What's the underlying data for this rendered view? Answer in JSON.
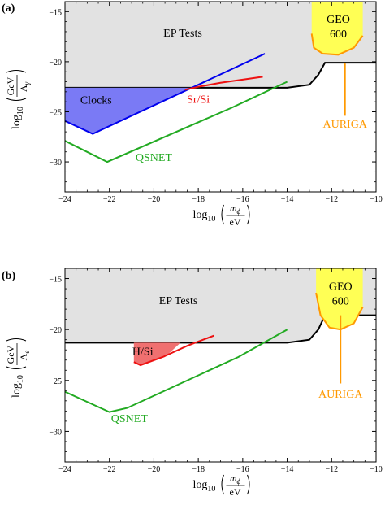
{
  "chart_data": [
    {
      "panel_label": "(a)",
      "type": "line",
      "ylabel": {
        "prefix": "log",
        "sub": "10",
        "numerator": "GeV",
        "denominator": "Λ",
        "denominator_sub": "γ"
      },
      "xlabel": {
        "prefix": "log",
        "sub": "10",
        "numerator": "m",
        "numerator_sub": "ϕ",
        "denominator": "eV"
      },
      "xlim": [
        -24,
        -10
      ],
      "ylim": [
        -33,
        -14
      ],
      "xticks": [
        -24,
        -22,
        -20,
        -18,
        -16,
        -14,
        -12,
        -10
      ],
      "yticks": [
        -15,
        -20,
        -25,
        -30
      ],
      "xtick_labels": [
        "−24",
        "−22",
        "−20",
        "−18",
        "−16",
        "−14",
        "−12",
        "−10"
      ],
      "ytick_labels": [
        "−15",
        "−20",
        "−25",
        "−30"
      ],
      "regions": [
        {
          "name": "EP Tests",
          "label": "EP Tests",
          "fill": "#e2e2e2",
          "edge": "#000000",
          "boundary": [
            [
              -24,
              -22.6
            ],
            [
              -14,
              -22.6
            ],
            [
              -13,
              -22.3
            ],
            [
              -12.6,
              -21.3
            ],
            [
              -12.3,
              -20.1
            ],
            [
              -10,
              -20.1
            ]
          ],
          "label_at": [
            -18.7,
            -17.5
          ]
        },
        {
          "name": "Clocks",
          "label": "Clocks",
          "fill": "#7a7af5",
          "edge": "#0000ee",
          "polygon": [
            [
              -24,
              -22.6
            ],
            [
              -18.3,
              -22.6
            ],
            [
              -22.75,
              -27.2
            ],
            [
              -24,
              -25.9
            ]
          ],
          "label_at": [
            -22.6,
            -24.2
          ],
          "line": [
            [
              -24,
              -25.9
            ],
            [
              -22.75,
              -27.2
            ],
            [
              -15,
              -19.2
            ]
          ]
        },
        {
          "name": "GEO 600",
          "label_lines": [
            "GEO",
            "600"
          ],
          "fill": "#ffff55",
          "edge": "#ff9900",
          "boundary": [
            [
              -12.9,
              -13
            ],
            [
              -12.9,
              -17.2
            ],
            [
              -12.8,
              -18.6
            ],
            [
              -12.4,
              -19.2
            ],
            [
              -11.7,
              -19.3
            ],
            [
              -11.0,
              -18.6
            ],
            [
              -10.6,
              -17.4
            ],
            [
              -10.6,
              -13
            ]
          ],
          "label_at": [
            -11.7,
            -16.1
          ]
        }
      ],
      "series": [
        {
          "name": "QSNET",
          "label": "QSNET",
          "color": "#22aa22",
          "x": [
            -24,
            -22.1,
            -16.5,
            -14
          ],
          "y": [
            -27.9,
            -30.0,
            -24.6,
            -22.0
          ],
          "label_at": [
            -20.0,
            -29.9
          ]
        },
        {
          "name": "Sr/Si",
          "label": "Sr/Si",
          "color": "#ee1111",
          "x": [
            -18.6,
            -18.0,
            -17.0,
            -15.1
          ],
          "y": [
            -22.8,
            -22.5,
            -22.1,
            -21.5
          ],
          "label_at": [
            -18.0,
            -24.1
          ]
        },
        {
          "name": "AURIGA",
          "label": "AURIGA",
          "color": "#ff9900",
          "x": [
            -11.4,
            -11.4
          ],
          "y": [
            -20.1,
            -25.4
          ],
          "label_at": [
            -11.4,
            -26.6
          ]
        }
      ]
    },
    {
      "panel_label": "(b)",
      "type": "line",
      "ylabel": {
        "prefix": "log",
        "sub": "10",
        "numerator": "GeV",
        "denominator": "Λ",
        "denominator_sub": "e"
      },
      "xlabel": {
        "prefix": "log",
        "sub": "10",
        "numerator": "m",
        "numerator_sub": "ϕ",
        "denominator": "eV"
      },
      "xlim": [
        -24,
        -10
      ],
      "ylim": [
        -33,
        -14
      ],
      "xticks": [
        -24,
        -22,
        -20,
        -18,
        -16,
        -14,
        -12,
        -10
      ],
      "yticks": [
        -15,
        -20,
        -25,
        -30
      ],
      "xtick_labels": [
        "−24",
        "−22",
        "−20",
        "−18",
        "−16",
        "−14",
        "−12",
        "−10"
      ],
      "ytick_labels": [
        "−15",
        "−20",
        "−25",
        "−30"
      ],
      "regions": [
        {
          "name": "EP Tests",
          "label": "EP Tests",
          "fill": "#e2e2e2",
          "edge": "#000000",
          "boundary": [
            [
              -24,
              -21.3
            ],
            [
              -14,
              -21.3
            ],
            [
              -13,
              -21.0
            ],
            [
              -12.6,
              -20.0
            ],
            [
              -12.3,
              -18.6
            ],
            [
              -10,
              -18.6
            ]
          ],
          "label_at": [
            -18.9,
            -17.5
          ]
        },
        {
          "name": "H/Si",
          "label": "H/Si",
          "fill": "#f07070",
          "edge": "#ee1111",
          "polygon": [
            [
              -20.9,
              -21.3
            ],
            [
              -18.8,
              -21.3
            ],
            [
              -19.5,
              -22.7
            ],
            [
              -20.6,
              -23.5
            ],
            [
              -20.9,
              -23.2
            ]
          ],
          "label_at": [
            -20.5,
            -22.5
          ],
          "line": [
            [
              -20.9,
              -23.2
            ],
            [
              -20.6,
              -23.5
            ],
            [
              -19.6,
              -22.7
            ],
            [
              -18.5,
              -21.6
            ],
            [
              -17.3,
              -20.6
            ]
          ]
        },
        {
          "name": "GEO 600",
          "label_lines": [
            "GEO",
            "600"
          ],
          "fill": "#ffff55",
          "edge": "#ff9900",
          "boundary": [
            [
              -12.7,
              -13
            ],
            [
              -12.7,
              -16.4
            ],
            [
              -12.5,
              -18.6
            ],
            [
              -12.1,
              -19.8
            ],
            [
              -11.6,
              -20.0
            ],
            [
              -11.0,
              -19.4
            ],
            [
              -10.6,
              -17.8
            ],
            [
              -10.6,
              -13
            ]
          ],
          "label_at": [
            -11.6,
            -16.1
          ]
        }
      ],
      "series": [
        {
          "name": "QSNET",
          "label": "QSNET",
          "color": "#22aa22",
          "x": [
            -24,
            -22.0,
            -21.2,
            -16.2,
            -14
          ],
          "y": [
            -26.1,
            -28.1,
            -27.7,
            -22.7,
            -20.0
          ],
          "label_at": [
            -21.1,
            -29.1
          ]
        },
        {
          "name": "AURIGA",
          "label": "AURIGA",
          "color": "#ff9900",
          "x": [
            -11.6,
            -11.6
          ],
          "y": [
            -18.6,
            -25.3
          ],
          "label_at": [
            -11.6,
            -26.7
          ]
        }
      ]
    }
  ]
}
